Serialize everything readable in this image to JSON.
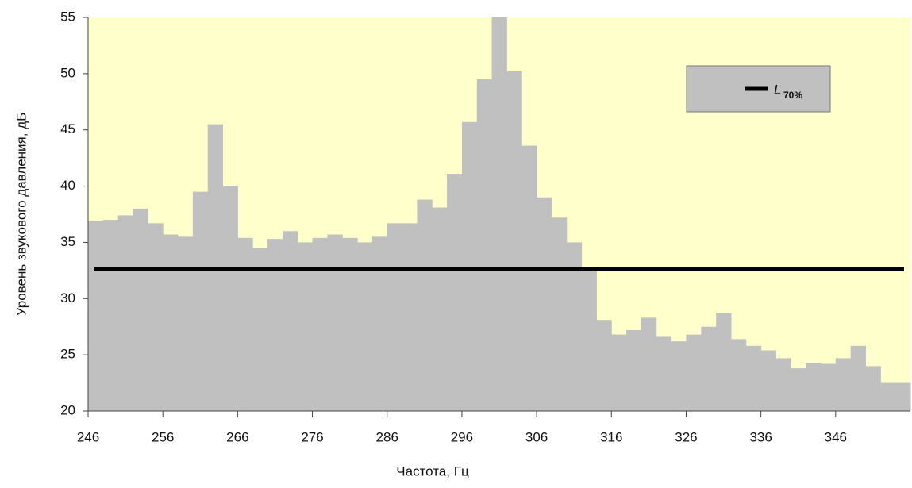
{
  "chart_data": {
    "type": "histogram",
    "xlabel": "Частота, Гц",
    "ylabel": "Уровень звукового давления, дБ",
    "bins": [
      246,
      248,
      250,
      252,
      254,
      256,
      258,
      260,
      262,
      264,
      266,
      268,
      270,
      272,
      274,
      276,
      278,
      280,
      282,
      284,
      286,
      288,
      290,
      292,
      294,
      296,
      298,
      300,
      302,
      304,
      306,
      308,
      310,
      312,
      314,
      316,
      318,
      320,
      322,
      324,
      326,
      328,
      330,
      332,
      334,
      336,
      338,
      340,
      342,
      344,
      346,
      348,
      350,
      352,
      354,
      356
    ],
    "values": [
      36.9,
      37.0,
      37.4,
      38.0,
      36.7,
      35.7,
      35.5,
      39.5,
      45.5,
      40.0,
      35.4,
      34.5,
      35.3,
      36.0,
      35.0,
      35.4,
      35.7,
      35.4,
      35.0,
      35.5,
      36.7,
      36.7,
      38.8,
      38.1,
      41.1,
      45.7,
      49.5,
      55,
      50.2,
      43.6,
      39.0,
      37.2,
      35.0,
      32.6,
      28.1,
      26.8,
      27.2,
      28.3,
      26.6,
      26.2,
      26.8,
      27.5,
      28.7,
      26.4,
      25.8,
      25.4,
      24.7,
      23.8,
      24.3,
      24.2,
      24.7,
      25.8,
      24.0,
      22.5,
      22.5
    ],
    "color": "#c0c0c0",
    "background": "#ffffcc",
    "reference_line": {
      "value": 32.6,
      "color": "#000000",
      "legend_label": "L",
      "legend_subscript": "70%"
    },
    "xlim": [
      246,
      356
    ],
    "xticks": [
      246,
      256,
      266,
      276,
      286,
      296,
      306,
      316,
      326,
      336,
      346
    ],
    "ylim": [
      20,
      55
    ],
    "yticks": [
      20,
      25,
      30,
      35,
      40,
      45,
      50,
      55
    ]
  }
}
